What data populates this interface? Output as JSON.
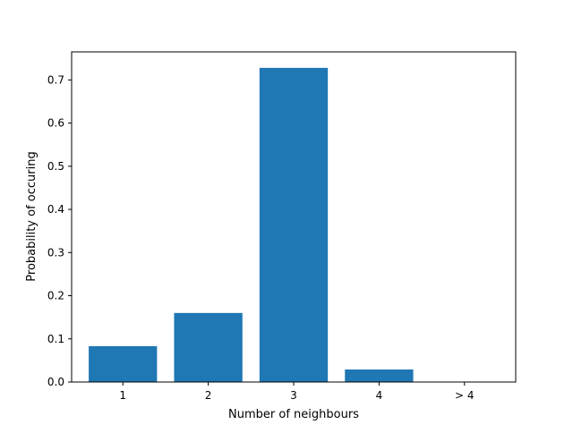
{
  "chart_data": {
    "type": "bar",
    "title": "",
    "xlabel": "Number of neighbours",
    "ylabel": "Probability of occuring",
    "categories": [
      "1",
      "2",
      "3",
      "4",
      "> 4"
    ],
    "values": [
      0.083,
      0.16,
      0.728,
      0.029,
      0.0
    ],
    "ylim": [
      0,
      0.765
    ],
    "yticks": [
      0.0,
      0.1,
      0.2,
      0.3,
      0.4,
      0.5,
      0.6,
      0.7
    ],
    "ytick_labels": [
      "0.0",
      "0.1",
      "0.2",
      "0.3",
      "0.4",
      "0.5",
      "0.6",
      "0.7"
    ],
    "bar_color": "#1f77b4",
    "grid": false,
    "legend": false
  }
}
